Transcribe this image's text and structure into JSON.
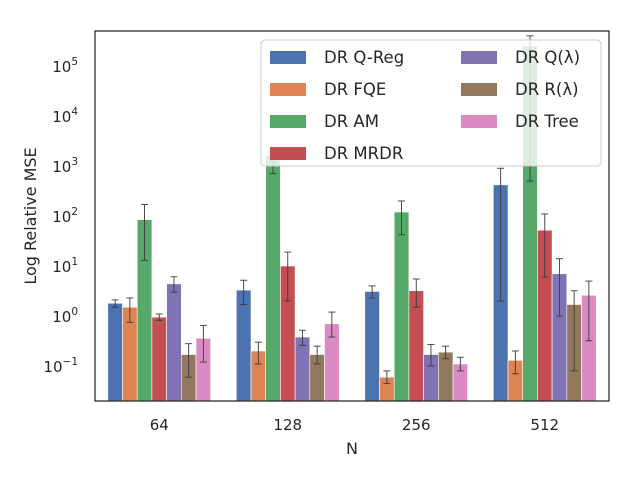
{
  "chart_data": {
    "type": "bar",
    "xlabel": "N",
    "ylabel": "Log Relative MSE",
    "yscale": "log",
    "ylim": [
      0.02,
      500000
    ],
    "categories": [
      "64",
      "128",
      "256",
      "512"
    ],
    "yticks": [
      {
        "base": "10",
        "exp": "−1",
        "value": 0.1
      },
      {
        "base": "10",
        "exp": "0",
        "value": 1
      },
      {
        "base": "10",
        "exp": "1",
        "value": 10
      },
      {
        "base": "10",
        "exp": "2",
        "value": 100
      },
      {
        "base": "10",
        "exp": "3",
        "value": 1000
      },
      {
        "base": "10",
        "exp": "4",
        "value": 10000
      },
      {
        "base": "10",
        "exp": "5",
        "value": 100000
      }
    ],
    "legend_position": "top-right",
    "grid": false,
    "series": [
      {
        "name": "DR Q-Reg",
        "color": "#4C72B0",
        "values": [
          1.8,
          3.3,
          3.1,
          420
        ],
        "err_low": [
          1.5,
          1.7,
          2.3,
          2.0
        ],
        "err_high": [
          2.1,
          5.2,
          4.0,
          900
        ]
      },
      {
        "name": "DR FQE",
        "color": "#DD8452",
        "values": [
          1.5,
          0.2,
          0.06,
          0.13
        ],
        "err_low": [
          0.75,
          0.11,
          0.045,
          0.07
        ],
        "err_high": [
          2.3,
          0.3,
          0.08,
          0.2
        ]
      },
      {
        "name": "DR AM",
        "color": "#55A868",
        "values": [
          85,
          1600,
          120,
          250000
        ],
        "err_low": [
          13,
          700,
          42,
          500
        ],
        "err_high": [
          170,
          2000,
          200,
          400000
        ]
      },
      {
        "name": "DR MRDR",
        "color": "#C44E52",
        "values": [
          0.95,
          10,
          3.2,
          52
        ],
        "err_low": [
          0.82,
          2.0,
          1.5,
          6.0
        ],
        "err_high": [
          1.1,
          19,
          5.5,
          110
        ]
      },
      {
        "name": "DR Q(λ)",
        "color": "#8172B3",
        "values": [
          4.4,
          0.38,
          0.17,
          7
        ],
        "err_low": [
          3.0,
          0.26,
          0.1,
          1.0
        ],
        "err_high": [
          6.1,
          0.52,
          0.27,
          14
        ]
      },
      {
        "name": "DR R(λ)",
        "color": "#937860",
        "values": [
          0.17,
          0.17,
          0.19,
          1.7
        ],
        "err_low": [
          0.06,
          0.11,
          0.14,
          0.08
        ],
        "err_high": [
          0.28,
          0.25,
          0.25,
          3.2
        ]
      },
      {
        "name": "DR Tree",
        "color": "#DA8BC3",
        "values": [
          0.36,
          0.7,
          0.11,
          2.6
        ],
        "err_low": [
          0.12,
          0.38,
          0.08,
          0.32
        ],
        "err_high": [
          0.65,
          1.2,
          0.15,
          5
        ]
      }
    ]
  }
}
